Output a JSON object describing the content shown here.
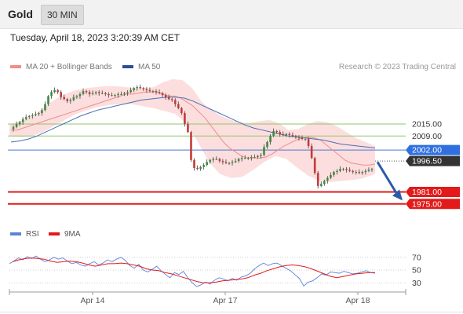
{
  "header": {
    "symbol": "Gold",
    "timeframe": "30 MIN"
  },
  "timestamp": "Tuesday, April 18, 2023 3:20:39 AM CET",
  "legend": {
    "ma20_label": "MA 20 + Bollinger Bands",
    "ma50_label": "MA 50",
    "copyright": "Research © 2023 Trading Central",
    "rsi_label": "RSI",
    "rsi_ma_label": "9MA"
  },
  "colors": {
    "up_candle": "#3f8a3f",
    "down_candle": "#c43a3a",
    "ma20": "#f08c8c",
    "bands_fill": "#fbd3d3",
    "ma50": "#4a6fb5",
    "resistance": "#8ec86a",
    "pivot": "#4a78d6",
    "support": "#e21a1a",
    "last_price_bg": "#333333",
    "pivot_bg": "#2f6fe0",
    "support_bg": "#e21a1a",
    "arrow": "#2c5aa8",
    "rsi": "#5b82d6",
    "rsi_ma": "#e21a1a"
  },
  "chart_data": [
    {
      "type": "candlestick",
      "x_axis": {
        "tick_labels": [
          "Apr 14",
          "Apr 17",
          "Apr 18"
        ]
      },
      "ylim": [
        1969,
        2039
      ],
      "last_price": 1996.5,
      "last_price_label": "1996.50",
      "levels": [
        {
          "label": "2015.00",
          "value": 2015.0,
          "kind": "resistance"
        },
        {
          "label": "2009.00",
          "value": 2009.0,
          "kind": "resistance"
        },
        {
          "label": "2002.00",
          "value": 2002.0,
          "kind": "pivot"
        },
        {
          "label": "1981.00",
          "value": 1981.0,
          "kind": "support"
        },
        {
          "label": "1975.00",
          "value": 1975.0,
          "kind": "support"
        }
      ],
      "price_path": [
        2012.5,
        2013.5,
        2015,
        2016,
        2017.5,
        2018.5,
        2019,
        2019.5,
        2020,
        2020.5,
        2022,
        2025,
        2029,
        2031,
        2032,
        2031,
        2028.5,
        2027.5,
        2026.5,
        2027,
        2028.5,
        2029,
        2030,
        2031.5,
        2031,
        2030,
        2030.5,
        2031,
        2030.5,
        2030.5,
        2030,
        2029.5,
        2029.5,
        2029.5,
        2030,
        2030,
        2030.5,
        2031,
        2032,
        2033,
        2033.5,
        2033,
        2032.5,
        2032,
        2031.5,
        2031.5,
        2031,
        2030.5,
        2029.5,
        2028.5,
        2027.5,
        2027,
        2025,
        2023,
        2020.5,
        2015,
        2011,
        1997,
        1993,
        1992.5,
        1993.5,
        1994.5,
        1996,
        1997,
        1997.5,
        1997.5,
        1996.5,
        1996,
        1995.5,
        1995.5,
        1996,
        1996.5,
        1997.5,
        1998,
        1998,
        1998,
        1998.5,
        1998.5,
        1999,
        1999.5,
        2003.5,
        2006,
        2009,
        2011.5,
        2011,
        2010,
        2009.5,
        2010,
        2009.5,
        2009,
        2008.5,
        2008,
        2007.5,
        2007.5,
        2004,
        1998,
        1990.5,
        1984,
        1985,
        1986.5,
        1988,
        1989.5,
        1991,
        1991.5,
        1992.5,
        1992.5,
        1992,
        1991.5,
        1991,
        1991,
        1990.5,
        1991,
        1991.5,
        1992,
        1992.5
      ],
      "ma20": [
        2012,
        2012,
        2013,
        2014,
        2015,
        2016,
        2017,
        2018,
        2019,
        2020,
        2021,
        2022,
        2023,
        2024,
        2025,
        2026,
        2027,
        2028,
        2029,
        2030,
        2030,
        2030.5,
        2031,
        2031,
        2031,
        2030,
        2029,
        2029,
        2028,
        2026,
        2024,
        2021,
        2018,
        2014,
        2010,
        2006,
        2003,
        2001,
        1999,
        1998,
        1998,
        1998,
        1998.5,
        2000,
        2002,
        2004,
        2005.5,
        2007,
        2008,
        2008.5,
        2008,
        2007,
        2004.5,
        2002,
        1999.5,
        1997,
        1995.5,
        1995,
        1994.5,
        1994.5,
        1995
      ],
      "ma50": [
        2006,
        2006.5,
        2007.5,
        2009,
        2011,
        2013,
        2015,
        2017,
        2019,
        2020.5,
        2022,
        2023,
        2024,
        2025,
        2026,
        2027,
        2027.5,
        2028,
        2028.5,
        2028.5,
        2028,
        2026.5,
        2024.5,
        2022.5,
        2020.5,
        2018.5,
        2016.5,
        2014.5,
        2013,
        2012,
        2011,
        2010,
        2009,
        2008.5,
        2008,
        2007.5,
        2007,
        2006,
        2005,
        2004.5,
        2004,
        2003.5,
        2003
      ],
      "bollinger_upper": [
        2015,
        2016,
        2018,
        2021,
        2025,
        2028,
        2030.5,
        2032,
        2033,
        2033.5,
        2034,
        2034,
        2033.5,
        2033,
        2033,
        2033.5,
        2036,
        2037.5,
        2037,
        2033,
        2026,
        2022,
        2019,
        2017,
        2016,
        2015.5,
        2016.5,
        2017,
        2015.5,
        2012,
        2012.5,
        2015,
        2016.5,
        2016,
        2014,
        2011,
        2008,
        2006,
        2004
      ],
      "bollinger_lower": [
        2009,
        2008.5,
        2009,
        2011,
        2014,
        2017,
        2020,
        2022,
        2023.5,
        2024.5,
        2025,
        2025,
        2024,
        2023,
        2021.5,
        2020,
        2015,
        2006,
        1996,
        1990,
        1988,
        1988.5,
        1992,
        1996,
        1999,
        1997.5,
        1993,
        1989,
        1986.5,
        1986,
        1986.5,
        1987,
        1988,
        1990
      ]
    },
    {
      "type": "line",
      "title": "RSI",
      "yticks": [
        70,
        50,
        30
      ],
      "ylim": [
        18,
        82
      ],
      "series": [
        {
          "name": "RSI",
          "values": [
            60,
            64,
            69,
            66,
            71,
            68,
            72,
            67,
            63,
            66,
            70,
            67,
            69,
            64,
            60,
            62,
            58,
            56,
            60,
            63,
            58,
            61,
            66,
            63,
            67,
            70,
            65,
            57,
            53,
            59,
            50,
            47,
            51,
            56,
            49,
            43,
            38,
            46,
            43,
            48,
            38,
            30,
            24,
            27,
            31,
            28,
            34,
            38,
            36,
            33,
            37,
            34,
            39,
            41,
            45,
            52,
            57,
            61,
            57,
            60,
            61,
            57,
            53,
            49,
            43,
            37,
            25,
            31,
            33,
            38,
            44,
            42,
            47,
            46,
            45,
            48,
            46,
            44,
            45,
            47,
            49,
            46,
            45
          ]
        },
        {
          "name": "9MA",
          "values": [
            63,
            66,
            68,
            69,
            68,
            67,
            64,
            62,
            63,
            64,
            63,
            61,
            58,
            56,
            58,
            60,
            60,
            61,
            60,
            58,
            56,
            52,
            50,
            49,
            46,
            44,
            41,
            38,
            35,
            32,
            30,
            30,
            31,
            33,
            34,
            35,
            36,
            38,
            42,
            45,
            49,
            52,
            55,
            57,
            58,
            57,
            55,
            52,
            48,
            44,
            40,
            38,
            40,
            42,
            44,
            45,
            46,
            46
          ]
        }
      ]
    }
  ]
}
